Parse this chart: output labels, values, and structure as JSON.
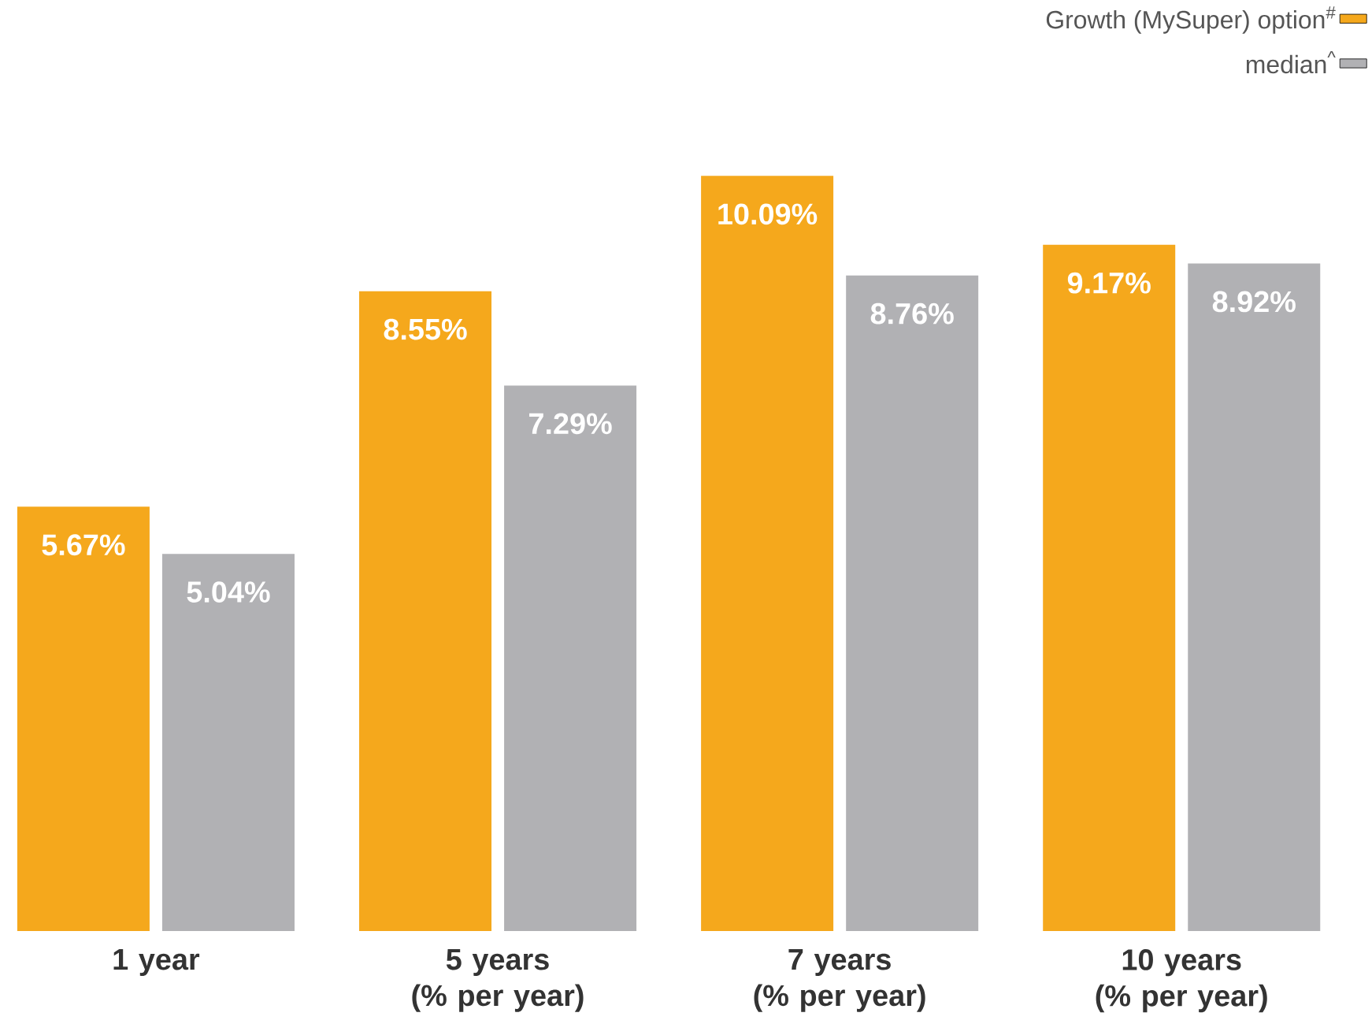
{
  "chart_data": {
    "type": "bar",
    "categories": [
      "1 year",
      "5 years (% per year)",
      "7 years (% per year)",
      "10 years (% per year)"
    ],
    "series": [
      {
        "name": "Growth (MySuper) option$^{#}$",
        "color": "#f5a81c",
        "values": [
          5.67,
          8.55,
          10.09,
          9.17
        ],
        "value_labels": [
          "5.67%",
          "8.55%",
          "10.09%",
          "9.17%"
        ]
      },
      {
        "name": "median$^{^}$",
        "color": "#b1b1b4",
        "values": [
          5.04,
          7.29,
          8.76,
          8.92
        ],
        "value_labels": [
          "5.04%",
          "7.29%",
          "8.76%",
          "8.92%"
        ]
      }
    ],
    "legend": "top right",
    "tick_labels": "x"
  }
}
